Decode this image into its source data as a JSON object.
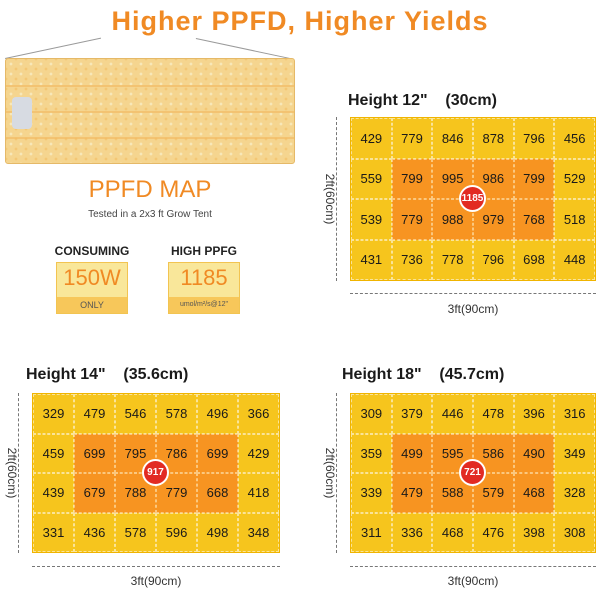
{
  "headline": "Higher PPFD, Higher Yields",
  "ppfd_map": {
    "title": "PPFD MAP",
    "subtitle": "Tested in a 2x3 ft Grow Tent"
  },
  "specs": {
    "consuming": {
      "label": "CONSUMING",
      "value": "150W",
      "foot": "ONLY"
    },
    "high_ppfd": {
      "label": "HIGH PPFG",
      "value": "1185",
      "foot": "umol/m²/s@12\""
    }
  },
  "colors": {
    "accent": "#f08a24",
    "outer_cell": "#f6c51d",
    "inner_cell": "#f79421",
    "center_badge": "#e22b23"
  },
  "maps": [
    {
      "title": "Height 12\"    (30cm)",
      "rows": [
        [
          "429",
          "779",
          "846",
          "878",
          "796",
          "456"
        ],
        [
          "559",
          "799",
          "995",
          "986",
          "799",
          "529"
        ],
        [
          "539",
          "779",
          "988",
          "979",
          "768",
          "518"
        ],
        [
          "431",
          "736",
          "778",
          "796",
          "698",
          "448"
        ]
      ],
      "center_value": "1185",
      "width_label": "3ft(90cm)",
      "height_label": "2ft(60cm)"
    },
    {
      "title": "Height 14\"    (35.6cm)",
      "rows": [
        [
          "329",
          "479",
          "546",
          "578",
          "496",
          "366"
        ],
        [
          "459",
          "699",
          "795",
          "786",
          "699",
          "429"
        ],
        [
          "439",
          "679",
          "788",
          "779",
          "668",
          "418"
        ],
        [
          "331",
          "436",
          "578",
          "596",
          "498",
          "348"
        ]
      ],
      "center_value": "917",
      "width_label": "3ft(90cm)",
      "height_label": "2ft(60cm)"
    },
    {
      "title": "Height 18\"    (45.7cm)",
      "rows": [
        [
          "309",
          "379",
          "446",
          "478",
          "396",
          "316"
        ],
        [
          "359",
          "499",
          "595",
          "586",
          "490",
          "349"
        ],
        [
          "339",
          "479",
          "588",
          "579",
          "468",
          "328"
        ],
        [
          "311",
          "336",
          "468",
          "476",
          "398",
          "308"
        ]
      ],
      "center_value": "721",
      "width_label": "3ft(90cm)",
      "height_label": "2ft(60cm)"
    }
  ]
}
